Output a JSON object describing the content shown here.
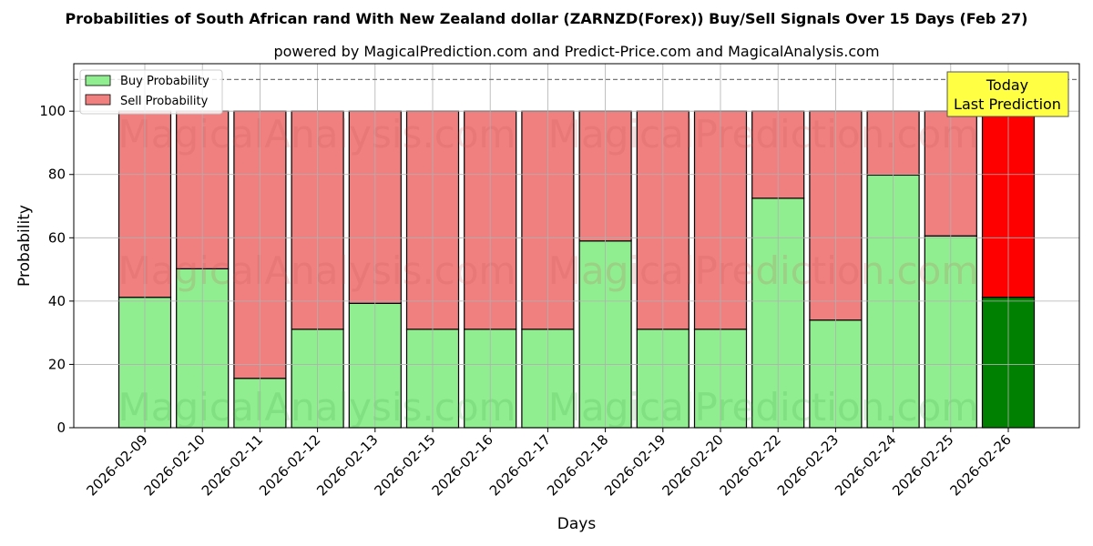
{
  "chart_data": {
    "type": "bar",
    "stacked": true,
    "title": "Probabilities of South African rand With New Zealand dollar (ZARNZD(Forex)) Buy/Sell Signals Over 15 Days (Feb 27)",
    "subtitle": "powered by MagicalPrediction.com and Predict-Price.com and MagicalAnalysis.com",
    "xlabel": "Days",
    "ylabel": "Probability",
    "ylim": [
      0,
      115
    ],
    "yticks": [
      0,
      20,
      40,
      60,
      80,
      100
    ],
    "grid": true,
    "legend_position": "top-left",
    "reference_line": 110,
    "categories": [
      "2026-02-09",
      "2026-02-10",
      "2026-02-11",
      "2026-02-12",
      "2026-02-13",
      "2026-02-15",
      "2026-02-16",
      "2026-02-17",
      "2026-02-18",
      "2026-02-19",
      "2026-02-20",
      "2026-02-22",
      "2026-02-23",
      "2026-02-24",
      "2026-02-25",
      "2026-02-26"
    ],
    "series": [
      {
        "name": "Buy Probability",
        "color": "#90ee90",
        "highlight_color": "#008000",
        "values": [
          41.2,
          50.2,
          15.6,
          31.1,
          39.3,
          31.1,
          31.1,
          31.1,
          59,
          31.1,
          31.1,
          72.5,
          34,
          79.8,
          60.6,
          41.2
        ]
      },
      {
        "name": "Sell Probability",
        "color": "#f08080",
        "highlight_color": "#ff0000",
        "values": [
          58.8,
          49.8,
          84.4,
          68.9,
          60.7,
          68.9,
          68.9,
          68.9,
          41,
          68.9,
          68.9,
          27.5,
          66,
          20.2,
          39.4,
          58.8
        ]
      }
    ],
    "annotation": {
      "line1": "Today",
      "line2": "Last Prediction",
      "color": "#ffff44"
    },
    "watermarks": [
      "MagicalAnalysis.com",
      "MagicalPrediction.com"
    ]
  }
}
